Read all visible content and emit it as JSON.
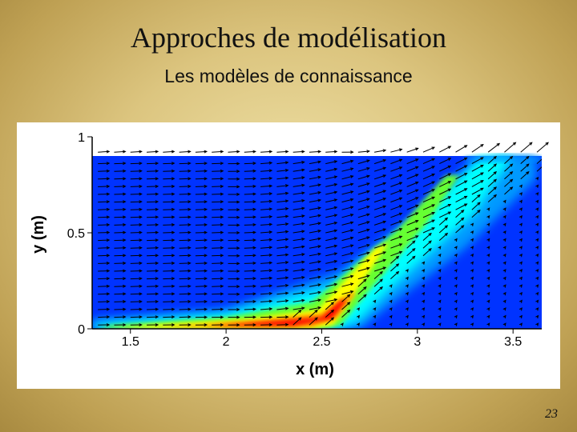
{
  "slide": {
    "title": "Approches de modélisation",
    "subtitle": "Les modèles de connaissance",
    "page_number": "23"
  },
  "chart_data": {
    "type": "heatmap",
    "description_free": true,
    "xlabel": "x (m)",
    "ylabel": "y (m)",
    "xlim": [
      1.3,
      3.65
    ],
    "ylim": [
      0,
      1
    ],
    "x_ticks": [
      "1.5",
      "2",
      "2.5",
      "3",
      "3.5"
    ],
    "y_ticks": [
      "0",
      "0.5",
      "1"
    ],
    "x_tick_values": [
      1.5,
      2,
      2.5,
      3,
      3.5
    ],
    "y_tick_values": [
      0,
      0.5,
      1
    ],
    "field_top_y": 0.9,
    "colormap": [
      "#0033ff",
      "#0099ff",
      "#00ffff",
      "#66ff33",
      "#ffff00",
      "#ff9900",
      "#ff0000"
    ],
    "background_color": "#0033ff",
    "vector_color": "#000000"
  }
}
